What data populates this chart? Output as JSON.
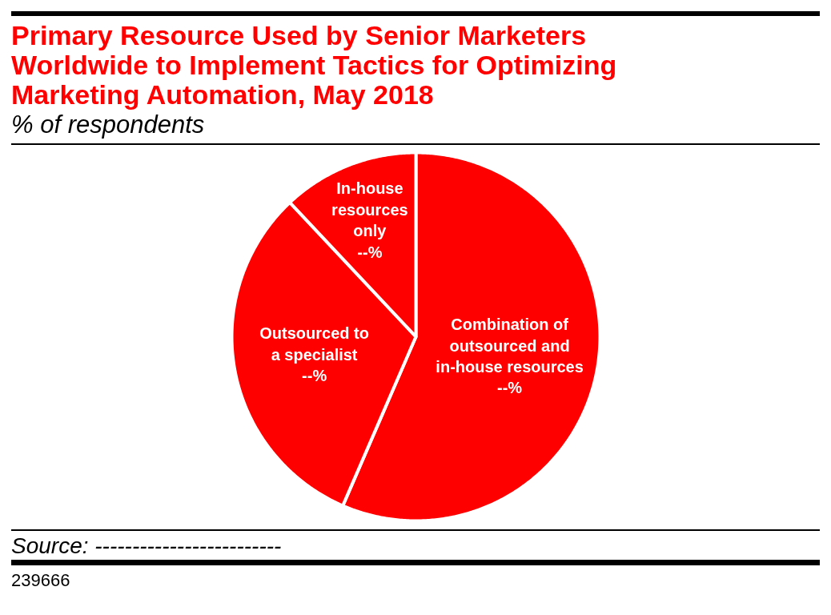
{
  "chart_data": {
    "type": "pie",
    "title": "Primary Resource Used by Senior Marketers Worldwide to Implement Tactics for Optimizing Marketing Automation, May 2018",
    "subtitle": "% of respondents",
    "categories": [
      "Combination of outsourced and in-house resources",
      "Outsourced to a specialist",
      "In-house resources only"
    ],
    "values": [
      56.5,
      31.5,
      12
    ],
    "colors": [
      "#ff0000",
      "#ff0000",
      "#ff0000"
    ],
    "value_labels": [
      "--%",
      "--%",
      "--%"
    ],
    "annotations": [
      "Source: -------------------------",
      "239666"
    ]
  }
}
